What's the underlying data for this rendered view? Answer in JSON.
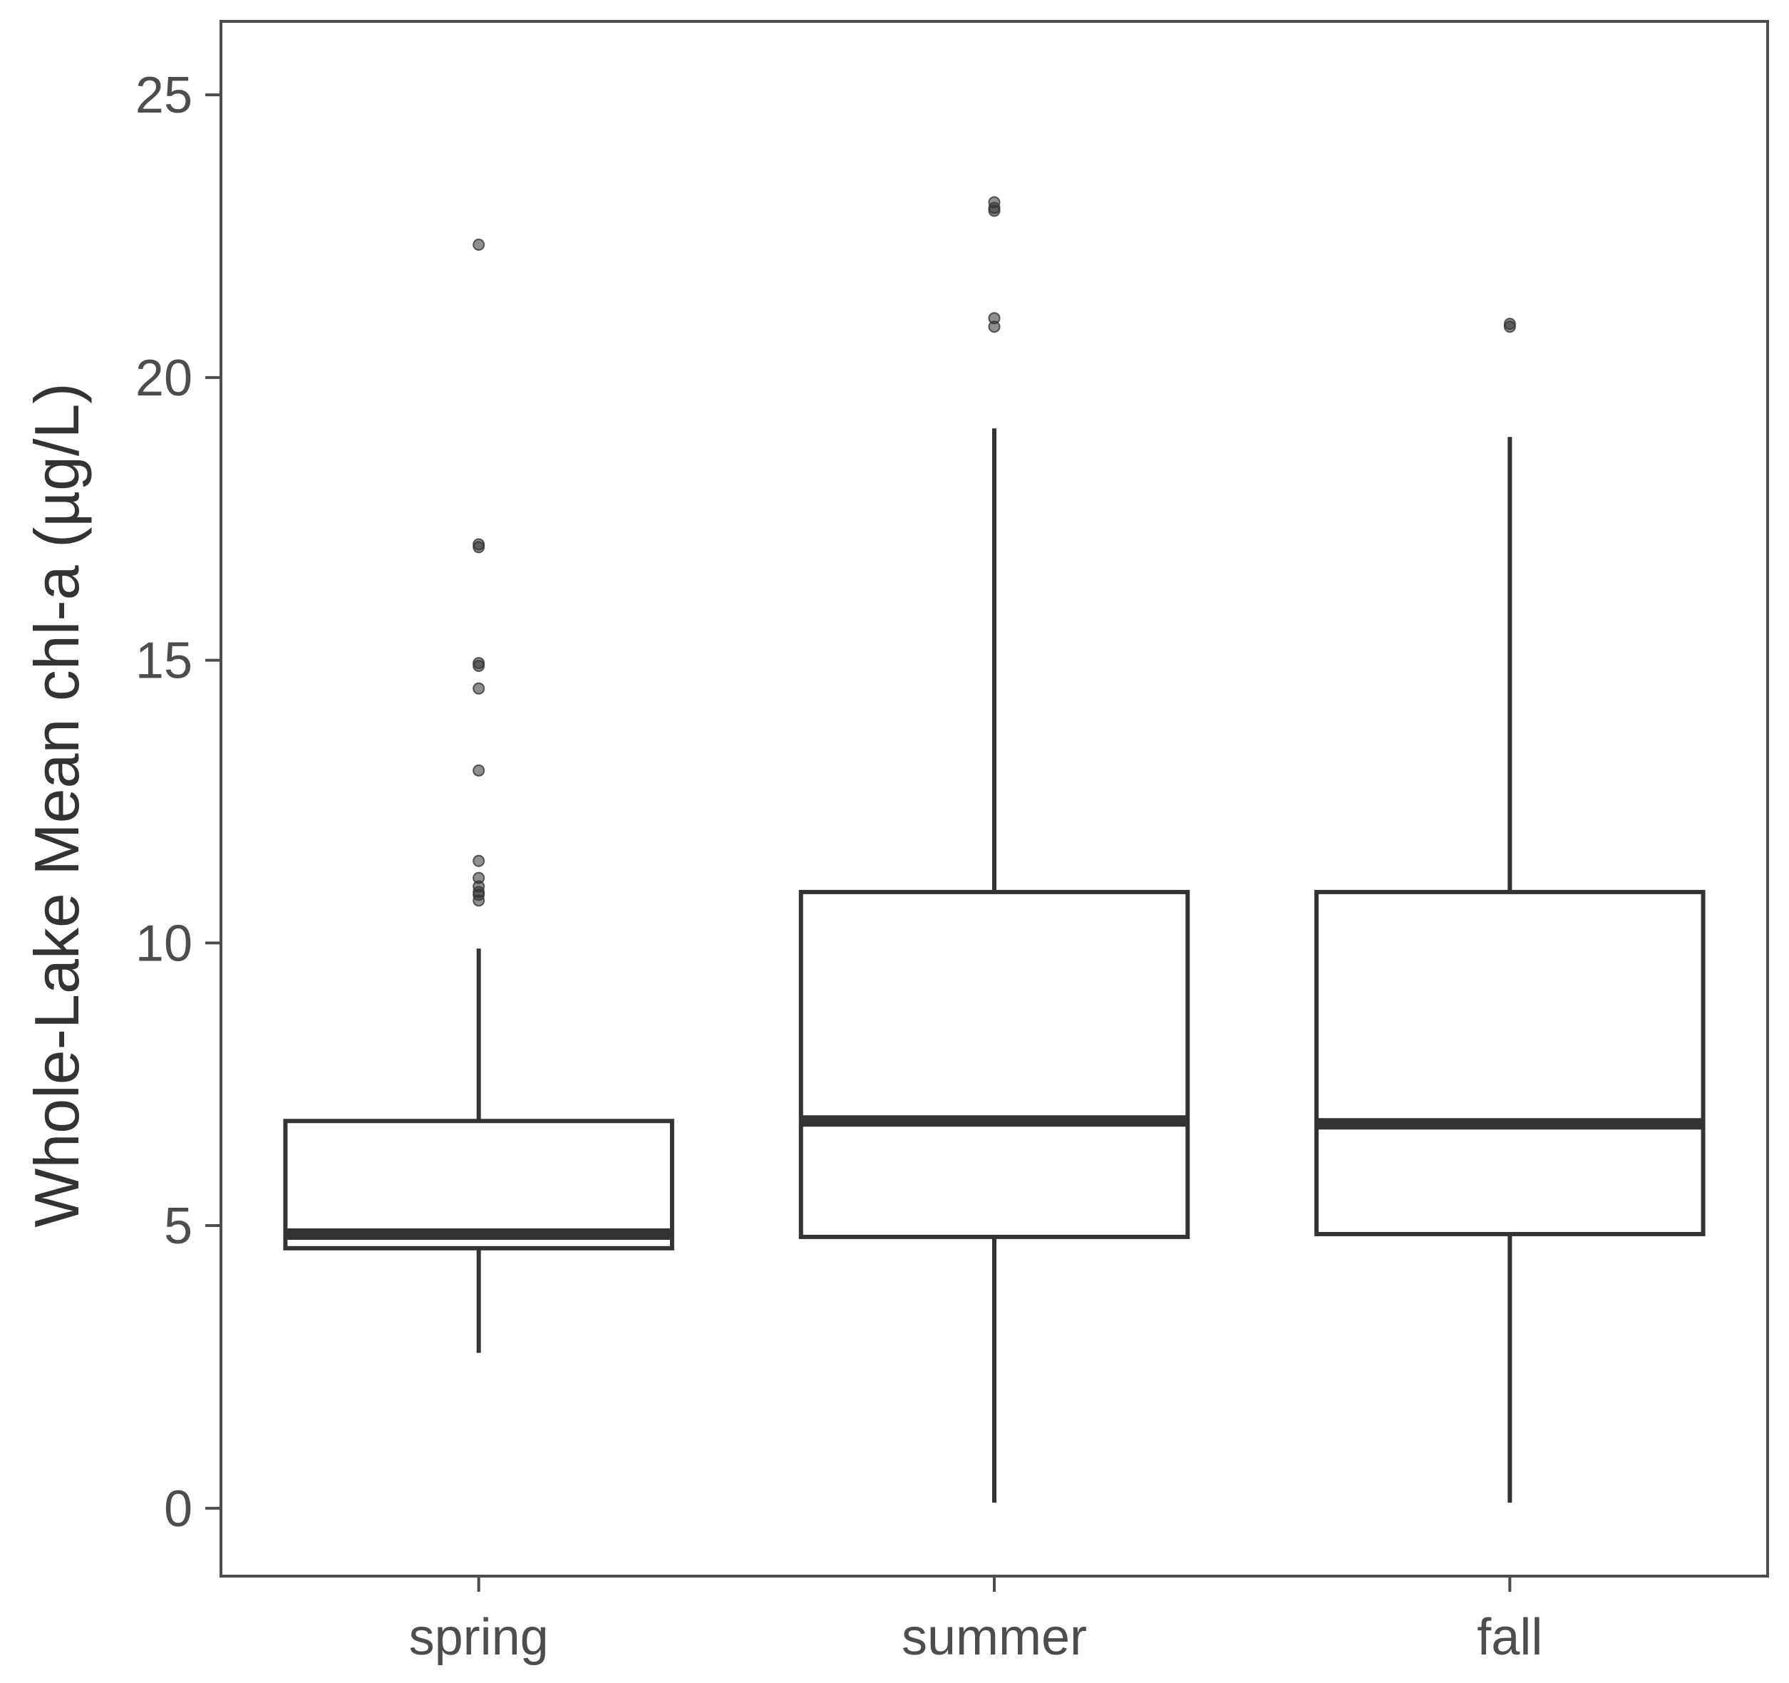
{
  "chart_data": {
    "type": "boxplot",
    "title": "",
    "xlabel": "",
    "ylabel": "Whole-Lake Mean chl-a (µg/L)",
    "ylim": [
      -1.2,
      26.3
    ],
    "yticks": [
      0,
      5,
      10,
      15,
      20,
      25
    ],
    "grid": false,
    "categories": [
      "spring",
      "summer",
      "fall"
    ],
    "boxes": [
      {
        "category": "spring",
        "whisker_low": 2.75,
        "q1": 4.6,
        "median": 4.85,
        "q3": 6.85,
        "whisker_high": 9.9,
        "outliers": [
          22.35,
          17.05,
          17.0,
          14.95,
          14.9,
          14.5,
          13.05,
          11.45,
          11.15,
          11.0,
          10.9,
          10.85,
          10.75
        ]
      },
      {
        "category": "summer",
        "whisker_low": 0.1,
        "q1": 4.8,
        "median": 6.85,
        "q3": 10.9,
        "whisker_high": 19.1,
        "outliers": [
          23.1,
          23.0,
          22.95,
          21.05,
          20.9
        ]
      },
      {
        "category": "fall",
        "whisker_low": 0.1,
        "q1": 4.85,
        "median": 6.8,
        "q3": 10.9,
        "whisker_high": 18.95,
        "outliers": [
          20.95,
          20.9
        ]
      }
    ],
    "colors": {
      "box_stroke": "#333333",
      "box_fill": "#ffffff",
      "outlier": "#333333",
      "panel_border": "#4d4d4d",
      "text": "#4d4d4d"
    }
  }
}
